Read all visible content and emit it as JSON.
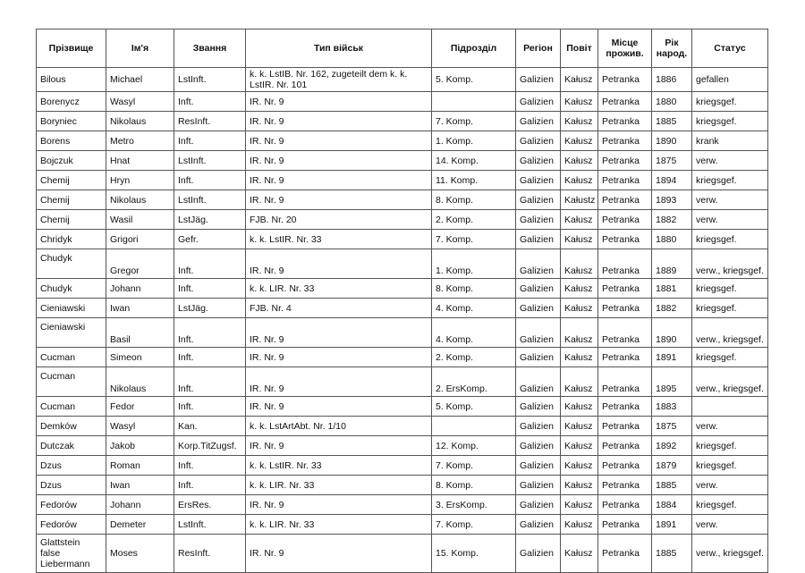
{
  "headers": [
    "Прізвище",
    "Ім'я",
    "Звання",
    "Тип військ",
    "Підрозділ",
    "Регіон",
    "Повіт",
    "Місце прожив.",
    "Рік народ.",
    "Статус"
  ],
  "rows": [
    [
      "Bilous",
      "Michael",
      "LstInft.",
      "k. k. LstIB. Nr. 162, zugeteilt dem k. k. LstIR. Nr. 101",
      "5. Komp.",
      "Galizien",
      "Kałusz",
      "Petranka",
      "1886",
      "gefallen"
    ],
    [
      "Borenycz",
      "Wasyl",
      "Inft.",
      "IR. Nr. 9",
      "",
      "Galizien",
      "Kałusz",
      "Petranka",
      "1880",
      "kriegsgef."
    ],
    [
      "Boryniec",
      "Nikolaus",
      "ResInft.",
      "IR. Nr. 9",
      "7. Komp.",
      "Galizien",
      "Kałusz",
      "Petranka",
      "1885",
      "kriegsgef."
    ],
    [
      "Borens",
      "Metro",
      "Inft.",
      "IR. Nr. 9",
      "1. Komp.",
      "Galizien",
      "Kałusz",
      "Petranka",
      "1890",
      "krank"
    ],
    [
      "Bojczuk",
      "Hnat",
      "LstInft.",
      "IR. Nr. 9",
      "14. Komp.",
      "Galizien",
      "Kałusz",
      "Petranka",
      "1875",
      "verw."
    ],
    [
      "Chemij",
      "Hryn",
      "Inft.",
      "IR. Nr. 9",
      "11. Komp.",
      "Galizien",
      "Kałusz",
      "Petranka",
      "1894",
      "kriegsgef."
    ],
    [
      "Chemij",
      "Nikolaus",
      "LstInft.",
      "IR. Nr. 9",
      "8. Komp.",
      "Galizien",
      "Kałustz",
      "Petranka",
      "1893",
      "verw."
    ],
    [
      "Chemij",
      "Wasil",
      "LstJäg.",
      "FJB. Nr. 20",
      "2. Komp.",
      "Galizien",
      "Kałusz",
      "Petranka",
      "1882",
      "verw."
    ],
    [
      "Chridyk",
      "Grigori",
      "Gefr.",
      "k. k. LstIR. Nr. 33",
      "7. Komp.",
      "Galizien",
      "Kałusz",
      "Petranka",
      "1880",
      "kriegsgef."
    ],
    [
      "Chudyk",
      "Gregor",
      "Inft.",
      "IR. Nr. 9",
      "1. Komp.",
      "Galizien",
      "Kałusz",
      "Petranka",
      "1889",
      "verw., kriegsgef."
    ],
    [
      "Chudyk",
      "Johann",
      "Inft.",
      "k. k. LIR. Nr. 33",
      "8. Komp.",
      "Galizien",
      "Kałusz",
      "Petranka",
      "1881",
      "kriegsgef."
    ],
    [
      "Cieniawski",
      "Iwan",
      "LstJäg.",
      "FJB. Nr. 4",
      "4. Komp.",
      "Galizien",
      "Kałusz",
      "Petranka",
      "1882",
      "kriegsgef."
    ],
    [
      "Cieniawski",
      "Basil",
      "Inft.",
      "IR. Nr. 9",
      "4. Komp.",
      "Galizien",
      "Kałusz",
      "Petranka",
      "1890",
      "verw., kriegsgef."
    ],
    [
      "Cucman",
      "Simeon",
      "Inft.",
      "IR. Nr. 9",
      "2. Komp.",
      "Galizien",
      "Kałusz",
      "Petranka",
      "1891",
      "kriegsgef."
    ],
    [
      "Cucman",
      "Nikolaus",
      "Inft.",
      "IR. Nr. 9",
      "2. ErsKomp.",
      "Galizien",
      "Kałusz",
      "Petranka",
      "1895",
      "verw., kriegsgef."
    ],
    [
      "Cucman",
      "Fedor",
      "Inft.",
      "IR. Nr. 9",
      "5. Komp.",
      "Galizien",
      "Kałusz",
      "Petranka",
      "1883",
      ""
    ],
    [
      "Demków",
      "Wasyl",
      "Kan.",
      "k. k. LstArtAbt. Nr. 1/10",
      "",
      "Galizien",
      "Kałusz",
      "Petranka",
      "1875",
      "verw."
    ],
    [
      "Dutczak",
      "Jakob",
      "Korp.TitZugsf.",
      "IR. Nr. 9",
      "12. Komp.",
      "Galizien",
      "Kałusz",
      "Petranka",
      "1892",
      "kriegsgef."
    ],
    [
      "Dzus",
      "Roman",
      "Inft.",
      "k. k. LstIR. Nr. 33",
      "7. Komp.",
      "Galizien",
      "Kałusz",
      "Petranka",
      "1879",
      "kriegsgef."
    ],
    [
      "Dzus",
      "Iwan",
      "Inft.",
      "k. k. LIR. Nr. 33",
      "8. Komp.",
      "Galizien",
      "Kałusz",
      "Petranka",
      "1885",
      "verw."
    ],
    [
      "Fedorów",
      "Johann",
      "ErsRes.",
      "IR. Nr. 9",
      "3. ErsKomp.",
      "Galizien",
      "Kałusz",
      "Petranka",
      "1884",
      "kriegsgef."
    ],
    [
      "Fedorów",
      "Demeter",
      "LstInft.",
      "k. k. LIR. Nr. 33",
      "7. Komp.",
      "Galizien",
      "Kałusz",
      "Petranka",
      "1891",
      "verw."
    ],
    [
      "Glattstein false Liebermann",
      "Moses",
      "ResInft.",
      "IR. Nr. 9",
      "15. Komp.",
      "Galizien",
      "Kałusz",
      "Petranka",
      "1885",
      "verw., kriegsgef."
    ]
  ]
}
